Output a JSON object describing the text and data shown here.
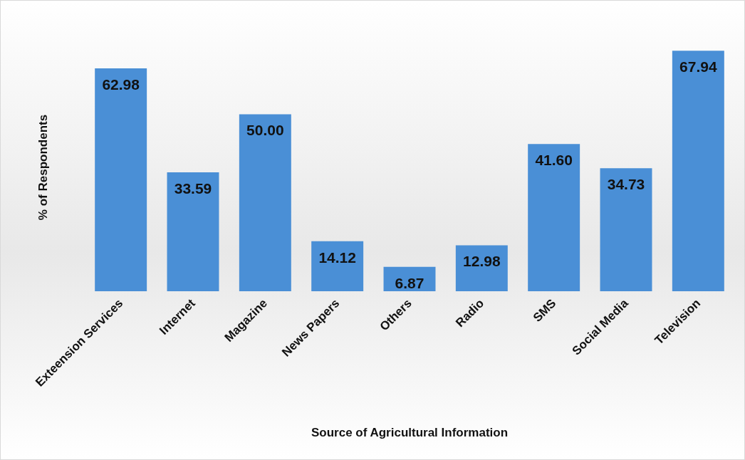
{
  "chart_data": {
    "type": "bar",
    "xlabel": "Source of Agricultural Information",
    "ylabel": "% of Respondents",
    "categories": [
      "Exteension Services",
      "Internet",
      "Magazine",
      "News Papers",
      "Others",
      "Radio",
      "SMS",
      "Social Media",
      "Television"
    ],
    "values": [
      62.98,
      33.59,
      50.0,
      14.12,
      6.87,
      12.98,
      41.6,
      34.73,
      67.94
    ],
    "value_labels": [
      "62.98",
      "33.59",
      "50.00",
      "14.12",
      "6.87",
      "12.98",
      "41.60",
      "34.73",
      "67.94"
    ],
    "color": "#4a8fd6"
  }
}
